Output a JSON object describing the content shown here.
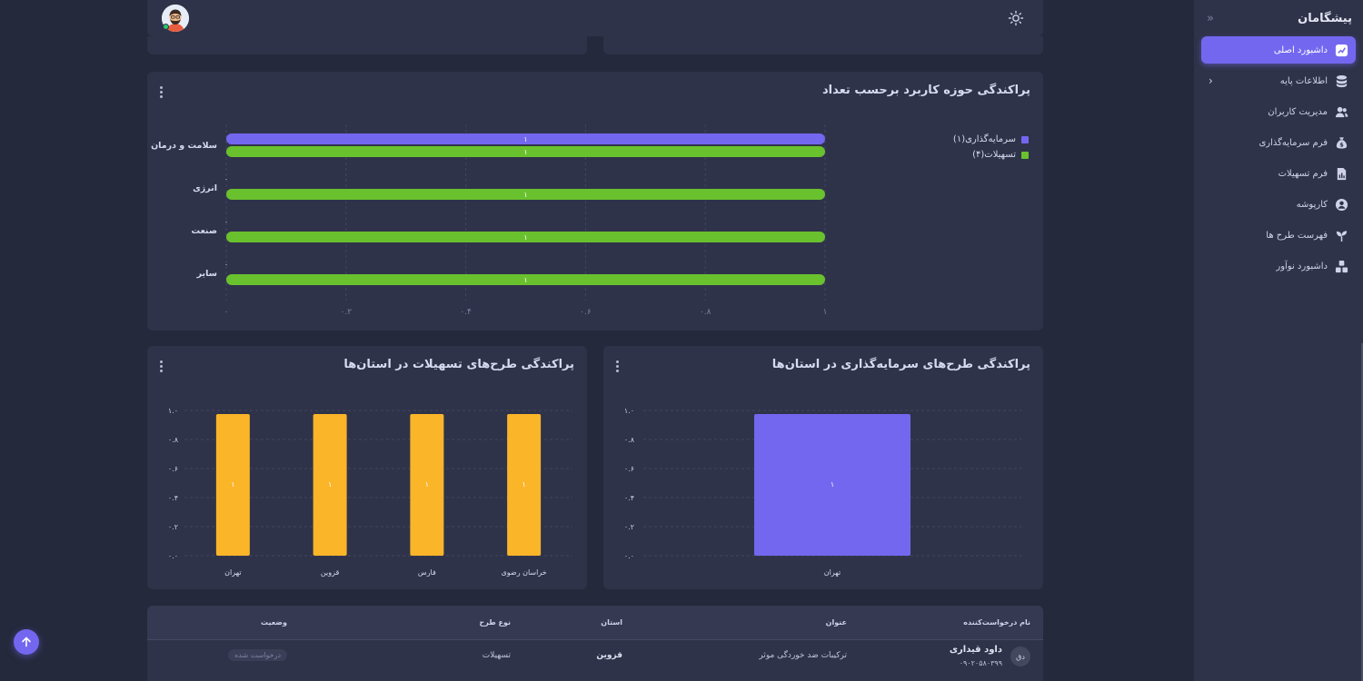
{
  "sidebar": {
    "brand": "پیشگامان",
    "items": [
      {
        "label": "داشبورد اصلی",
        "icon": "trend-chart-icon",
        "active": true
      },
      {
        "label": "اطلاعات پایه",
        "icon": "database-icon",
        "has_submenu": true
      },
      {
        "label": "مدیریت کاربران",
        "icon": "users-icon"
      },
      {
        "label": "فرم سرمایه‌گذاری",
        "icon": "money-bag-icon"
      },
      {
        "label": "فرم تسهیلات",
        "icon": "file-chart-icon"
      },
      {
        "label": "کارپوشه",
        "icon": "user-circle-icon"
      },
      {
        "label": "فهرست طرح ها",
        "icon": "plant-icon"
      },
      {
        "label": "داشبورد نوآور",
        "icon": "boxes-icon"
      }
    ]
  },
  "colors": {
    "accent": "#7367f0",
    "series_investment": "#7367f0",
    "series_facilities": "#6ac12e",
    "bar_orange": "#fbb529",
    "card_bg": "#2f3349",
    "page_bg": "#25293c"
  },
  "cards": {
    "field_chart": {
      "title": "پراکندگی حوزه کاربرد برحسب تعداد"
    },
    "investment_chart": {
      "title": "پراکندگی طرح‌های سرمایه‌گذاری در استان‌ها"
    },
    "facilities_chart": {
      "title": "پراکندگی طرح‌های تسهیلات در استان‌ها"
    }
  },
  "chart_data": [
    {
      "type": "bar",
      "orientation": "horizontal",
      "categories": [
        "سلامت و درمان",
        "انرژی",
        "صنعت",
        "سایر"
      ],
      "series": [
        {
          "name": "سرمایه‌گذاری(۱)",
          "values": [
            1,
            0,
            0,
            0
          ],
          "value_labels": [
            "۱",
            "۰",
            "۰",
            "۰"
          ]
        },
        {
          "name": "تسهیلات(۴)",
          "values": [
            1,
            1,
            1,
            1
          ],
          "value_labels": [
            "۱",
            "۱",
            "۱",
            "۱"
          ]
        }
      ],
      "xlim": [
        0,
        1
      ],
      "x_ticks": [
        "۰",
        "۰.۲",
        "۰.۴",
        "۰.۶",
        "۰.۸",
        "۱"
      ],
      "grid": true,
      "legend": "top-right"
    },
    {
      "type": "bar",
      "categories": [
        "تهران"
      ],
      "values": [
        1
      ],
      "value_labels": [
        "۱"
      ],
      "ylim": [
        0,
        1
      ],
      "y_ticks": [
        "۰.۰",
        "۰.۲",
        "۰.۴",
        "۰.۶",
        "۰.۸",
        "۱.۰"
      ],
      "grid": true
    },
    {
      "type": "bar",
      "categories": [
        "خراسان رضوی",
        "فارس",
        "قزوین",
        "تهران"
      ],
      "values": [
        1,
        1,
        1,
        1
      ],
      "value_labels": [
        "۱",
        "۱",
        "۱",
        "۱"
      ],
      "ylim": [
        0,
        1
      ],
      "y_ticks": [
        "۰.۰",
        "۰.۲",
        "۰.۴",
        "۰.۶",
        "۰.۸",
        "۱.۰"
      ],
      "grid": true
    }
  ],
  "table": {
    "headers": {
      "applicant": "نام درخواست‌کننده",
      "title": "عنوان",
      "province": "استان",
      "type": "نوع طرح",
      "status": "وضعیت"
    },
    "rows": [
      {
        "initials": "دق",
        "name": "داود قیداری",
        "phone": "۰۹۰۲۰۵۸۰۳۹۹",
        "title": "ترکیبات ضد خوردگی موثر",
        "province": "قزوین",
        "type": "تسهیلات",
        "status": "درخواست شده"
      }
    ]
  }
}
